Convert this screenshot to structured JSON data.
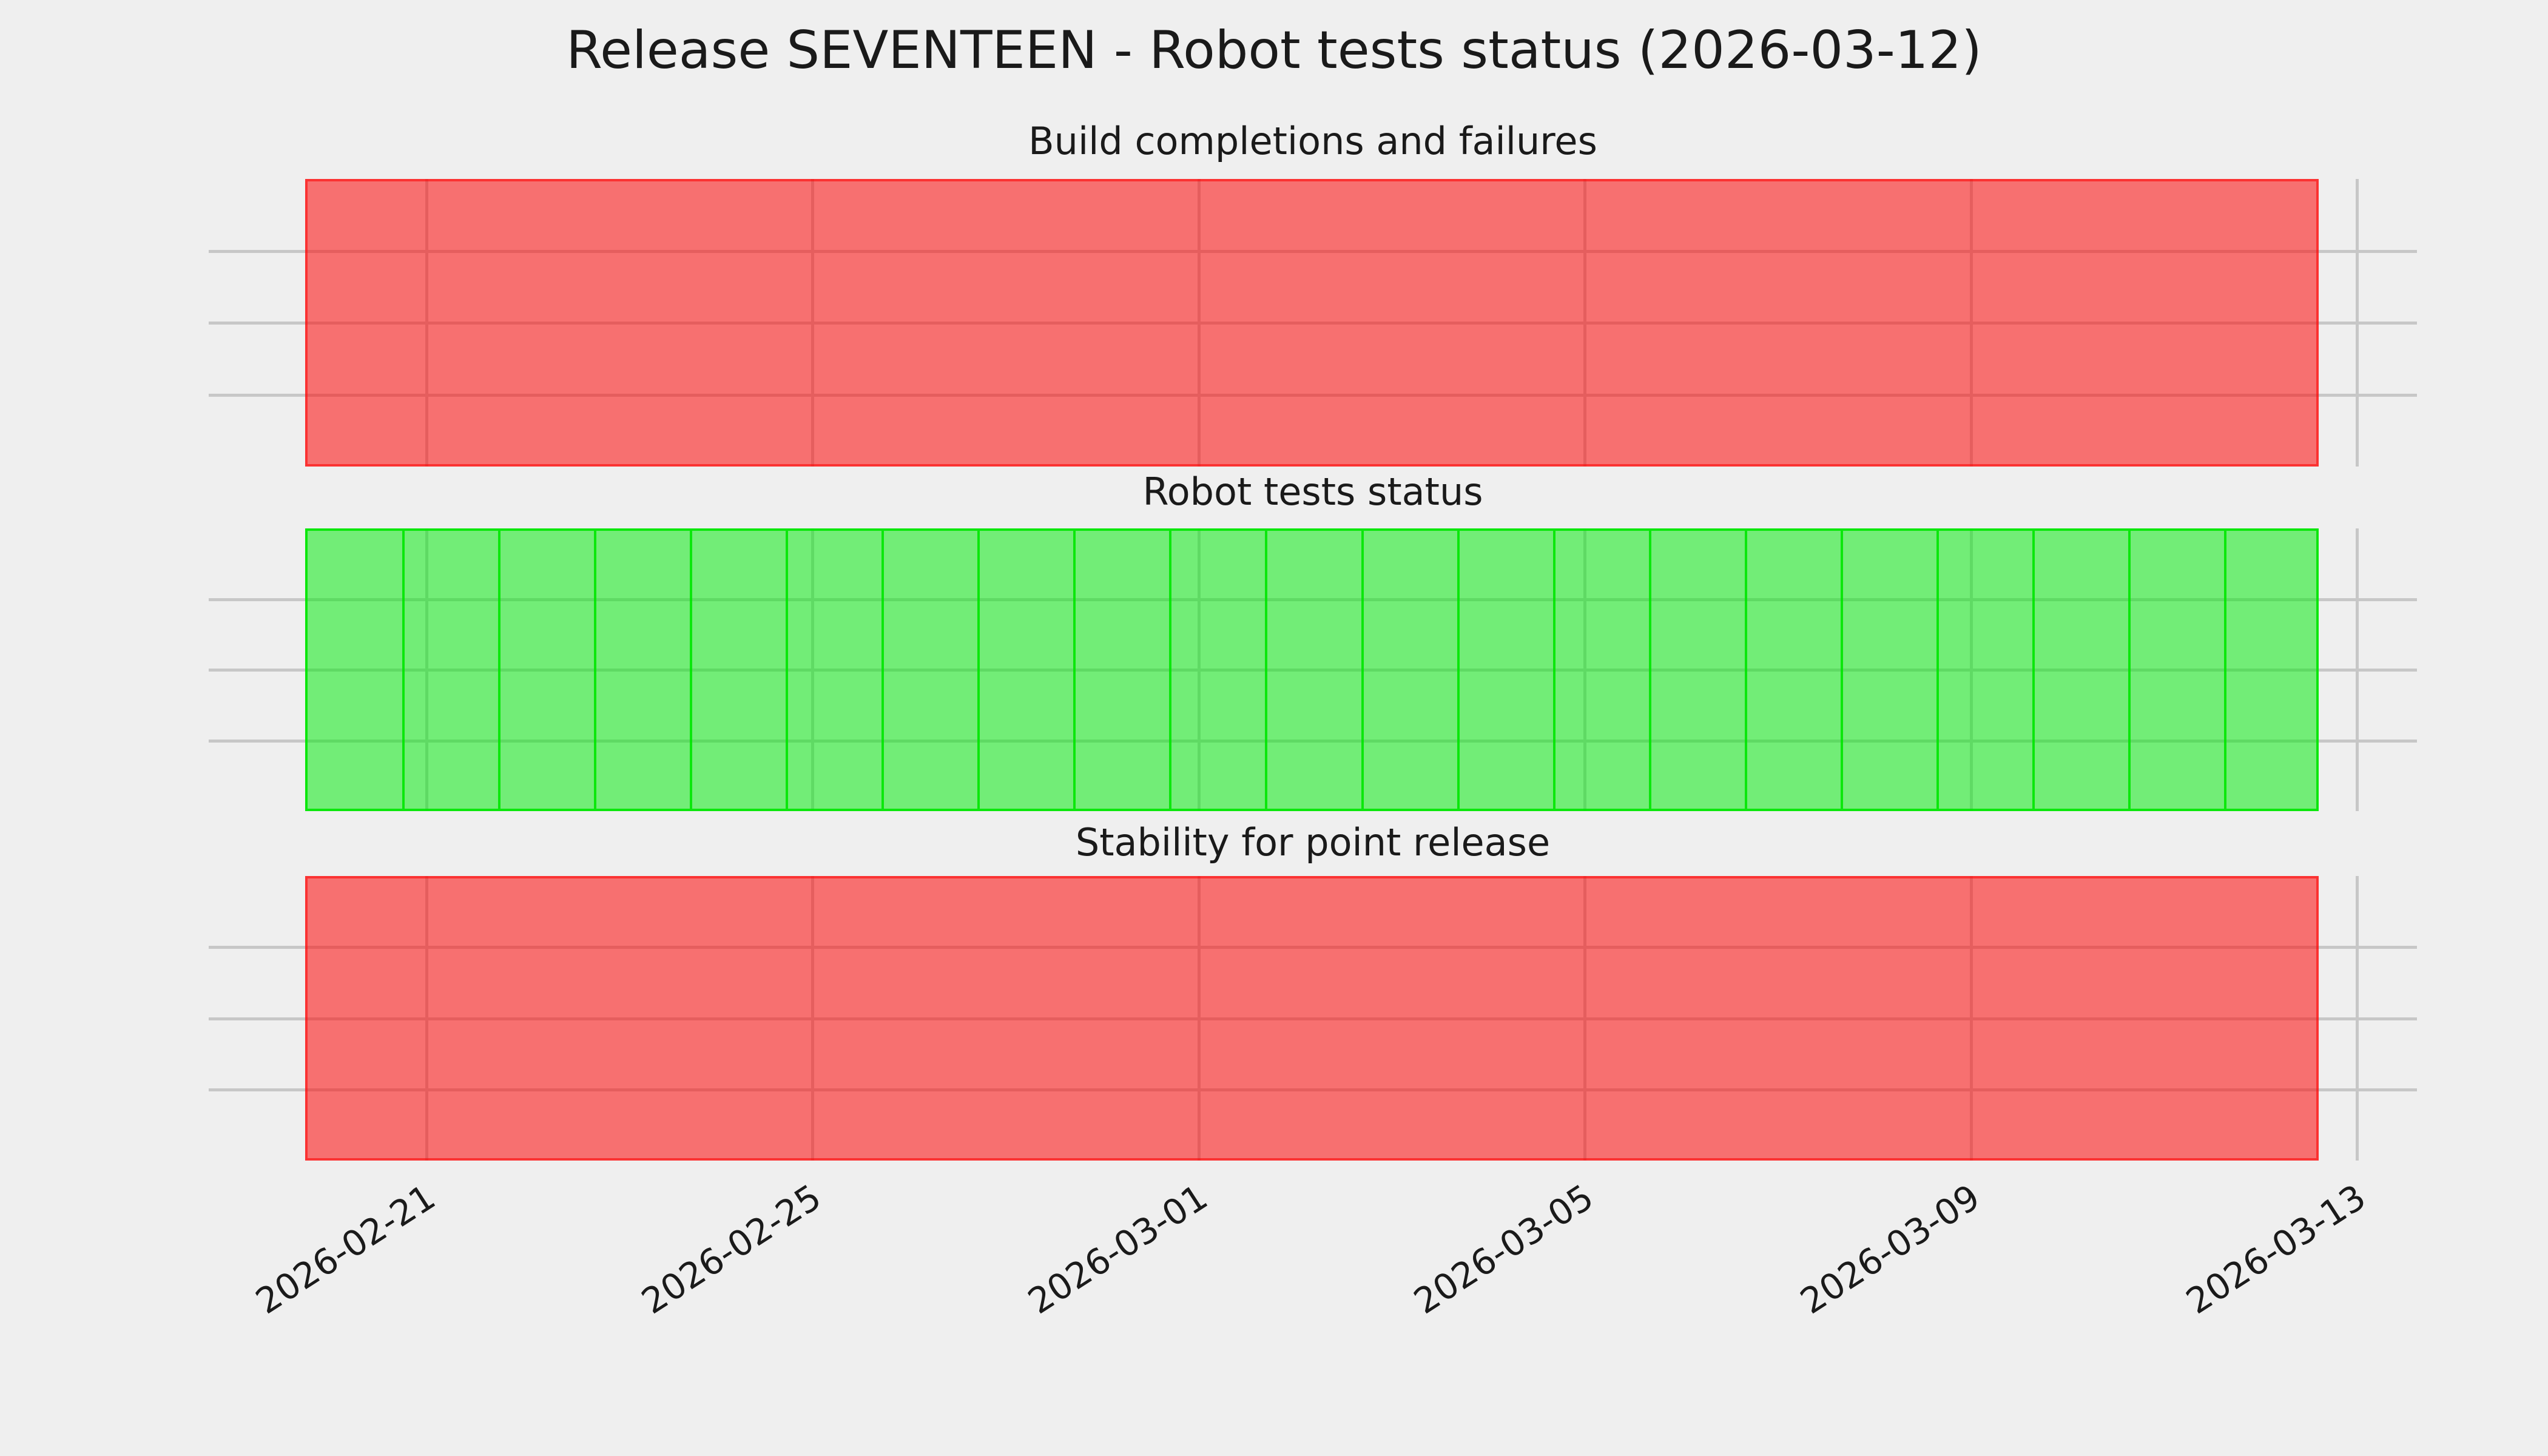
{
  "figure": {
    "title": "Release SEVENTEEN - Robot tests status (2026-03-12)",
    "background": "#efefef",
    "grid_color": "#c7c7c7",
    "text_color": "#1a1a1a"
  },
  "subplots": [
    {
      "title": "Build completions and failures",
      "status": "failing",
      "fill": "rgba(255,0,0,0.53)",
      "edge": "rgba(255,0,0,0.55)",
      "fill_hex_effective": "#f87878",
      "edge_hex_effective": "#f23c3c",
      "segmented": false
    },
    {
      "title": "Robot tests status",
      "status": "passing",
      "fill": "rgba(0,235,10,0.52)",
      "edge": "rgba(0,230,0,0.9)",
      "fill_hex_effective": "#73f27a",
      "edge_hex_effective": "#0fee0f",
      "segmented": true
    },
    {
      "title": "Stability for point release",
      "status": "failing",
      "fill": "rgba(255,0,0,0.53)",
      "edge": "rgba(255,0,0,0.55)",
      "fill_hex_effective": "#f87878",
      "edge_hex_effective": "#f23c3c",
      "segmented": false
    }
  ],
  "x_axis": {
    "tick_labels": [
      "2026-02-21",
      "2026-02-25",
      "2026-03-01",
      "2026-03-05",
      "2026-03-09",
      "2026-03-13"
    ],
    "rotation_deg": 33
  },
  "chart_data": {
    "type": "bar",
    "title": "Release SEVENTEEN - Robot tests status (2026-03-12)",
    "layout": "3 vertically stacked subplots sharing one date x-axis; each bar is a full-height daily status block",
    "categories": [
      "2026-02-20",
      "2026-02-21",
      "2026-02-22",
      "2026-02-23",
      "2026-02-24",
      "2026-02-25",
      "2026-02-26",
      "2026-02-27",
      "2026-02-28",
      "2026-03-01",
      "2026-03-02",
      "2026-03-03",
      "2026-03-04",
      "2026-03-05",
      "2026-03-06",
      "2026-03-07",
      "2026-03-08",
      "2026-03-09",
      "2026-03-10",
      "2026-03-11",
      "2026-03-12"
    ],
    "x_tick_labels": [
      "2026-02-21",
      "2026-02-25",
      "2026-03-01",
      "2026-03-05",
      "2026-03-09",
      "2026-03-13"
    ],
    "xlabel": "",
    "ylabel": "",
    "ylim": [
      0,
      1
    ],
    "yticks_unlabeled": [
      0.25,
      0.5,
      0.75
    ],
    "grid": true,
    "legend": "none",
    "series": [
      {
        "name": "Build completions and failures",
        "status_meaning": "red = failing every day",
        "color": "red",
        "values": [
          1,
          1,
          1,
          1,
          1,
          1,
          1,
          1,
          1,
          1,
          1,
          1,
          1,
          1,
          1,
          1,
          1,
          1,
          1,
          1,
          1
        ]
      },
      {
        "name": "Robot tests status",
        "status_meaning": "green = passing every day",
        "color": "green",
        "values": [
          1,
          1,
          1,
          1,
          1,
          1,
          1,
          1,
          1,
          1,
          1,
          1,
          1,
          1,
          1,
          1,
          1,
          1,
          1,
          1,
          1
        ]
      },
      {
        "name": "Stability for point release",
        "status_meaning": "red = failing every day",
        "color": "red",
        "values": [
          1,
          1,
          1,
          1,
          1,
          1,
          1,
          1,
          1,
          1,
          1,
          1,
          1,
          1,
          1,
          1,
          1,
          1,
          1,
          1,
          1
        ]
      }
    ]
  }
}
